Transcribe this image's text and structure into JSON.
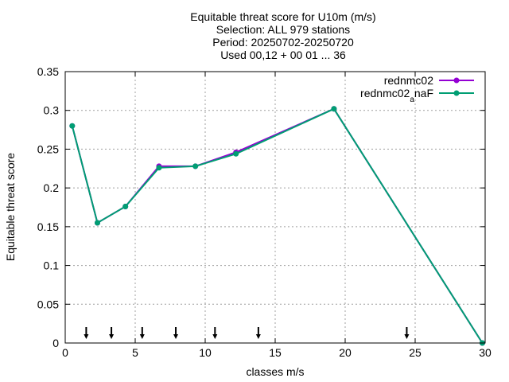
{
  "chart_data": {
    "type": "line",
    "title_lines": [
      "Equitable threat score  for U10m (m/s)",
      "Selection: ALL    979 stations",
      "Period: 20250702-20250720",
      "Used 00,12 + 00 01 ... 36"
    ],
    "xlabel": "classes m/s",
    "ylabel": "Equitable threat score",
    "xlim": [
      0,
      30
    ],
    "ylim": [
      0,
      0.35
    ],
    "xticks": [
      "0",
      "5",
      "10",
      "15",
      "20",
      "25",
      "30"
    ],
    "yticks": [
      "0",
      "0.05",
      "0.1",
      "0.15",
      "0.2",
      "0.25",
      "0.3",
      "0.35"
    ],
    "grid": true,
    "legend_position": "top-right",
    "series": [
      {
        "name": "rednmc02",
        "color": "#9400d3",
        "x": [
          0.5,
          2.3,
          4.3,
          6.7,
          9.3,
          12.2,
          19.2,
          29.8
        ],
        "y": [
          0.28,
          0.155,
          0.176,
          0.228,
          0.228,
          0.246,
          0.302,
          0.0
        ]
      },
      {
        "name": "rednmc02_anaF",
        "color": "#009e73",
        "x": [
          0.5,
          2.3,
          4.3,
          6.7,
          9.3,
          12.2,
          19.2,
          29.8
        ],
        "y": [
          0.28,
          0.155,
          0.176,
          0.226,
          0.228,
          0.244,
          0.302,
          0.0
        ]
      }
    ],
    "class_limits": [
      1.5,
      3.3,
      5.5,
      7.9,
      10.7,
      13.8,
      24.4
    ]
  }
}
